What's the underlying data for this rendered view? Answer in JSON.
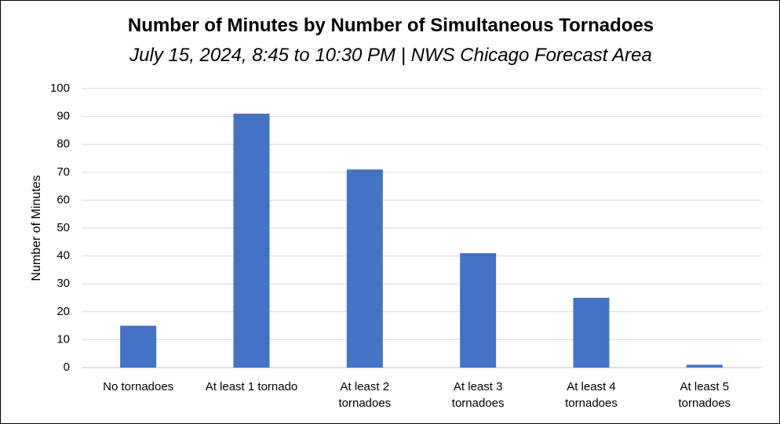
{
  "chart_data": {
    "type": "bar",
    "title": "Number of Minutes by Number of Simultaneous Tornadoes",
    "subtitle": "July 15, 2024, 8:45 to 10:30 PM | NWS Chicago Forecast Area",
    "ylabel": "Number of Minutes",
    "xlabel": "",
    "ylim": [
      0,
      100
    ],
    "yticks": [
      0,
      10,
      20,
      30,
      40,
      50,
      60,
      70,
      80,
      90,
      100
    ],
    "grid": true,
    "legend": "none",
    "bar_color": "#4472C4",
    "categories": [
      [
        "No tornadoes"
      ],
      [
        "At least 1 tornado"
      ],
      [
        "At least 2",
        "tornadoes"
      ],
      [
        "At least 3",
        "tornadoes"
      ],
      [
        "At least 4",
        "tornadoes"
      ],
      [
        "At least 5",
        "tornadoes"
      ]
    ],
    "values": [
      15,
      91,
      71,
      41,
      25,
      1
    ]
  }
}
